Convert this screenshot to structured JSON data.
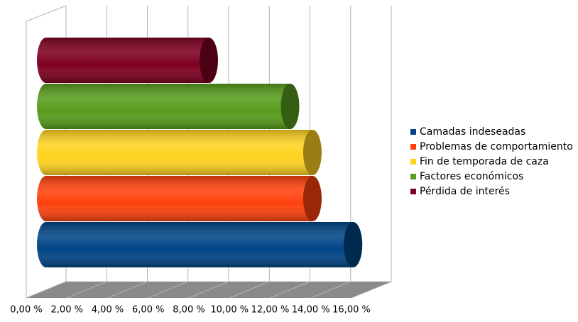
{
  "chart_data": {
    "type": "bar3d",
    "series": [
      {
        "name": "Camadas indeseadas",
        "color": "#004586",
        "values": [
          15.1
        ]
      },
      {
        "name": "Problemas de comportamiento",
        "color": "#ff420e",
        "values": [
          13.1
        ]
      },
      {
        "name": "Fin de temporada de caza",
        "color": "#ffd320",
        "values": [
          13.1
        ]
      },
      {
        "name": "Factores económicos",
        "color": "#579d1c",
        "values": [
          12.0
        ]
      },
      {
        "name": "Pérdida de interés",
        "color": "#7e0021",
        "values": [
          8.0
        ]
      }
    ],
    "xlim": [
      0,
      16
    ],
    "xticks": [
      {
        "value": 0,
        "label": "0,00 %"
      },
      {
        "value": 2,
        "label": "2,00 %"
      },
      {
        "value": 4,
        "label": "4,00 %"
      },
      {
        "value": 6,
        "label": "6,00 %"
      },
      {
        "value": 8,
        "label": "8,00 %"
      },
      {
        "value": 10,
        "label": "10,00 %"
      },
      {
        "value": 12,
        "label": "12,00 %"
      },
      {
        "value": 14,
        "label": "14,00 %"
      },
      {
        "value": 16,
        "label": "16,00 %"
      }
    ],
    "grid": true
  }
}
